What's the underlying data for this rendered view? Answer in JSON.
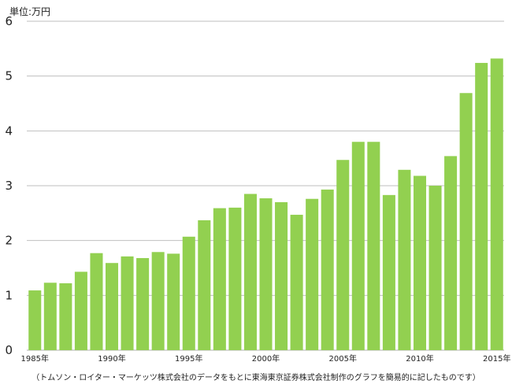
{
  "chart_data": {
    "type": "bar",
    "title": "",
    "unit_label": "単位:万円",
    "xlabel": "",
    "ylabel": "",
    "ylim": [
      0,
      6
    ],
    "yticks": [
      "0",
      "1",
      "2",
      "3",
      "4",
      "5",
      "6"
    ],
    "grid": true,
    "bar_color": "#92d050",
    "grid_color": "#bfbfbf",
    "categories": [
      "1985",
      "1986",
      "1987",
      "1988",
      "1989",
      "1990",
      "1991",
      "1992",
      "1993",
      "1994",
      "1995",
      "1996",
      "1997",
      "1998",
      "1999",
      "2000",
      "2001",
      "2002",
      "2003",
      "2004",
      "2005",
      "2006",
      "2007",
      "2008",
      "2009",
      "2010",
      "2011",
      "2012",
      "2013",
      "2014",
      "2015"
    ],
    "values": [
      1.09,
      1.23,
      1.22,
      1.43,
      1.77,
      1.59,
      1.71,
      1.68,
      1.79,
      1.76,
      2.07,
      2.37,
      2.59,
      2.6,
      2.85,
      2.77,
      2.7,
      2.47,
      2.76,
      2.93,
      3.47,
      3.8,
      3.8,
      2.83,
      3.29,
      3.18,
      3.0,
      3.54,
      4.69,
      5.24,
      5.32
    ],
    "x_tick_labels": [
      {
        "index": 0,
        "label": "1985年"
      },
      {
        "index": 5,
        "label": "1990年"
      },
      {
        "index": 10,
        "label": "1995年"
      },
      {
        "index": 15,
        "label": "2000年"
      },
      {
        "index": 20,
        "label": "2005年"
      },
      {
        "index": 25,
        "label": "2010年"
      },
      {
        "index": 30,
        "label": "2015年"
      }
    ],
    "source_note": "（トムソン・ロイター・マーケッツ株式会社のデータをもとに東海東京証券株式会社制作のグラフを簡易的に記したものです）"
  }
}
